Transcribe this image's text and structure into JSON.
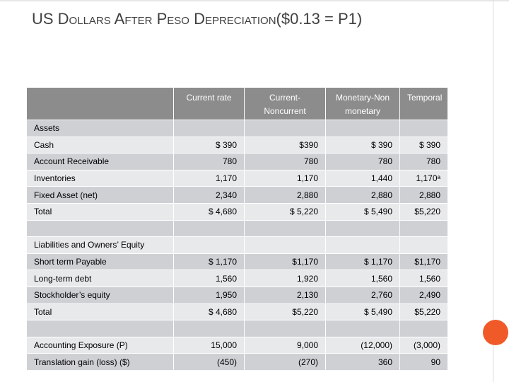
{
  "header": {
    "title": "US Dollars After Peso Depreciation($0.13 = P1)"
  },
  "table": {
    "columns": [
      "Current rate",
      "Current-Noncurrent",
      "Monetary-Non monetary",
      "Temporal"
    ],
    "sections": [
      {
        "heading": "Assets",
        "rows": [
          {
            "label": "Cash",
            "cells": [
              "$ 390",
              "$390",
              "$ 390",
              "$ 390"
            ]
          },
          {
            "label": "Account Receivable",
            "cells": [
              "780",
              "780",
              "780",
              "780"
            ]
          },
          {
            "label": "Inventories",
            "cells": [
              "1,170",
              "1,170",
              "1,440",
              "1,170ᵃ"
            ]
          },
          {
            "label": "Fixed Asset (net)",
            "cells": [
              "2,340",
              "2,880",
              "2,880",
              "2,880"
            ]
          },
          {
            "label": "Total",
            "cells": [
              "$ 4,680",
              "$ 5,220",
              "$ 5,490",
              "$5,220"
            ]
          }
        ]
      },
      {
        "heading": "Liabilities and Owners’ Equity",
        "rows": [
          {
            "label": "Short term Payable",
            "cells": [
              "$ 1,170",
              "$1,170",
              "$ 1,170",
              "$1,170"
            ]
          },
          {
            "label": "Long-term debt",
            "cells": [
              "1,560",
              "1,920",
              "1,560",
              "1,560"
            ]
          },
          {
            "label": "Stockholder’s equity",
            "cells": [
              "1,950",
              "2,130",
              "2,760",
              "2,490"
            ]
          },
          {
            "label": "Total",
            "cells": [
              "$ 4,680",
              "$5,220",
              "$ 5,490",
              "$5,220"
            ]
          }
        ]
      },
      {
        "rows": [
          {
            "label": "Accounting Exposure (P)",
            "cells": [
              "15,000",
              "9,000",
              "(12,000)",
              "(3,000)"
            ]
          },
          {
            "label": "Translation gain (loss) ($)",
            "cells": [
              "(450)",
              "(270)",
              "360",
              "90"
            ]
          }
        ]
      }
    ]
  }
}
